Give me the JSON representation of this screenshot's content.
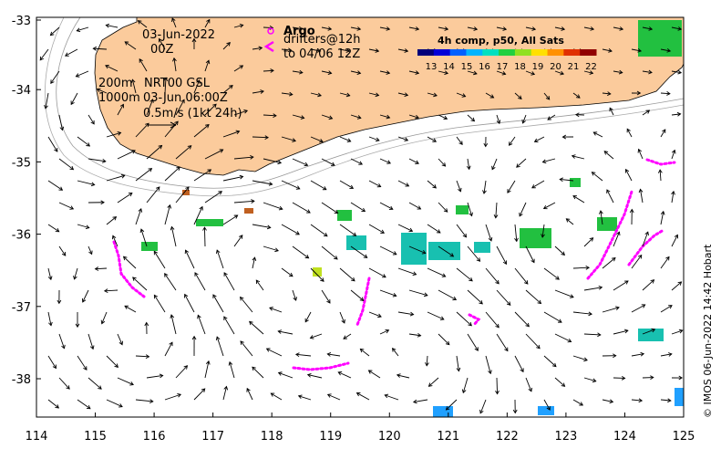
{
  "map": {
    "date_line1": "03-Jun-2022",
    "date_line2": "00Z",
    "depth1": "200m",
    "depth2": "1000m",
    "product": "NRT00 GSL",
    "product_time": "03-Jun 06:00Z",
    "scale_text": "0.5m/s (1kt 24h)",
    "argo_label": "Argo",
    "drifters_label": "drifters@12h",
    "drifters_to": "to 04/06 12Z",
    "colorbar_title": "4h comp, p50, All Sats",
    "colorbar_ticks": [
      "13",
      "14",
      "15",
      "16",
      "17",
      "18",
      "19",
      "20",
      "21",
      "22"
    ],
    "colorbar_colors": [
      "#00007a",
      "#0000d8",
      "#0060ff",
      "#00b4ff",
      "#00e0c0",
      "#20d040",
      "#90e020",
      "#ffe000",
      "#ff9000",
      "#e03000",
      "#900000"
    ],
    "credit": "© IMOS 06-Jun-2022 14:42 Hobart",
    "x_ticks": [
      "114",
      "115",
      "116",
      "117",
      "118",
      "119",
      "120",
      "121",
      "122",
      "123",
      "124",
      "125"
    ],
    "y_ticks": [
      "-33",
      "-34",
      "-35",
      "-36",
      "-37",
      "-38"
    ]
  },
  "colors": {
    "land": "#fbcb9c",
    "drifter": "#ff00ff",
    "sst_green": "#22c040",
    "sst_teal": "#18c0b0",
    "sst_cyan": "#20a0ff"
  }
}
